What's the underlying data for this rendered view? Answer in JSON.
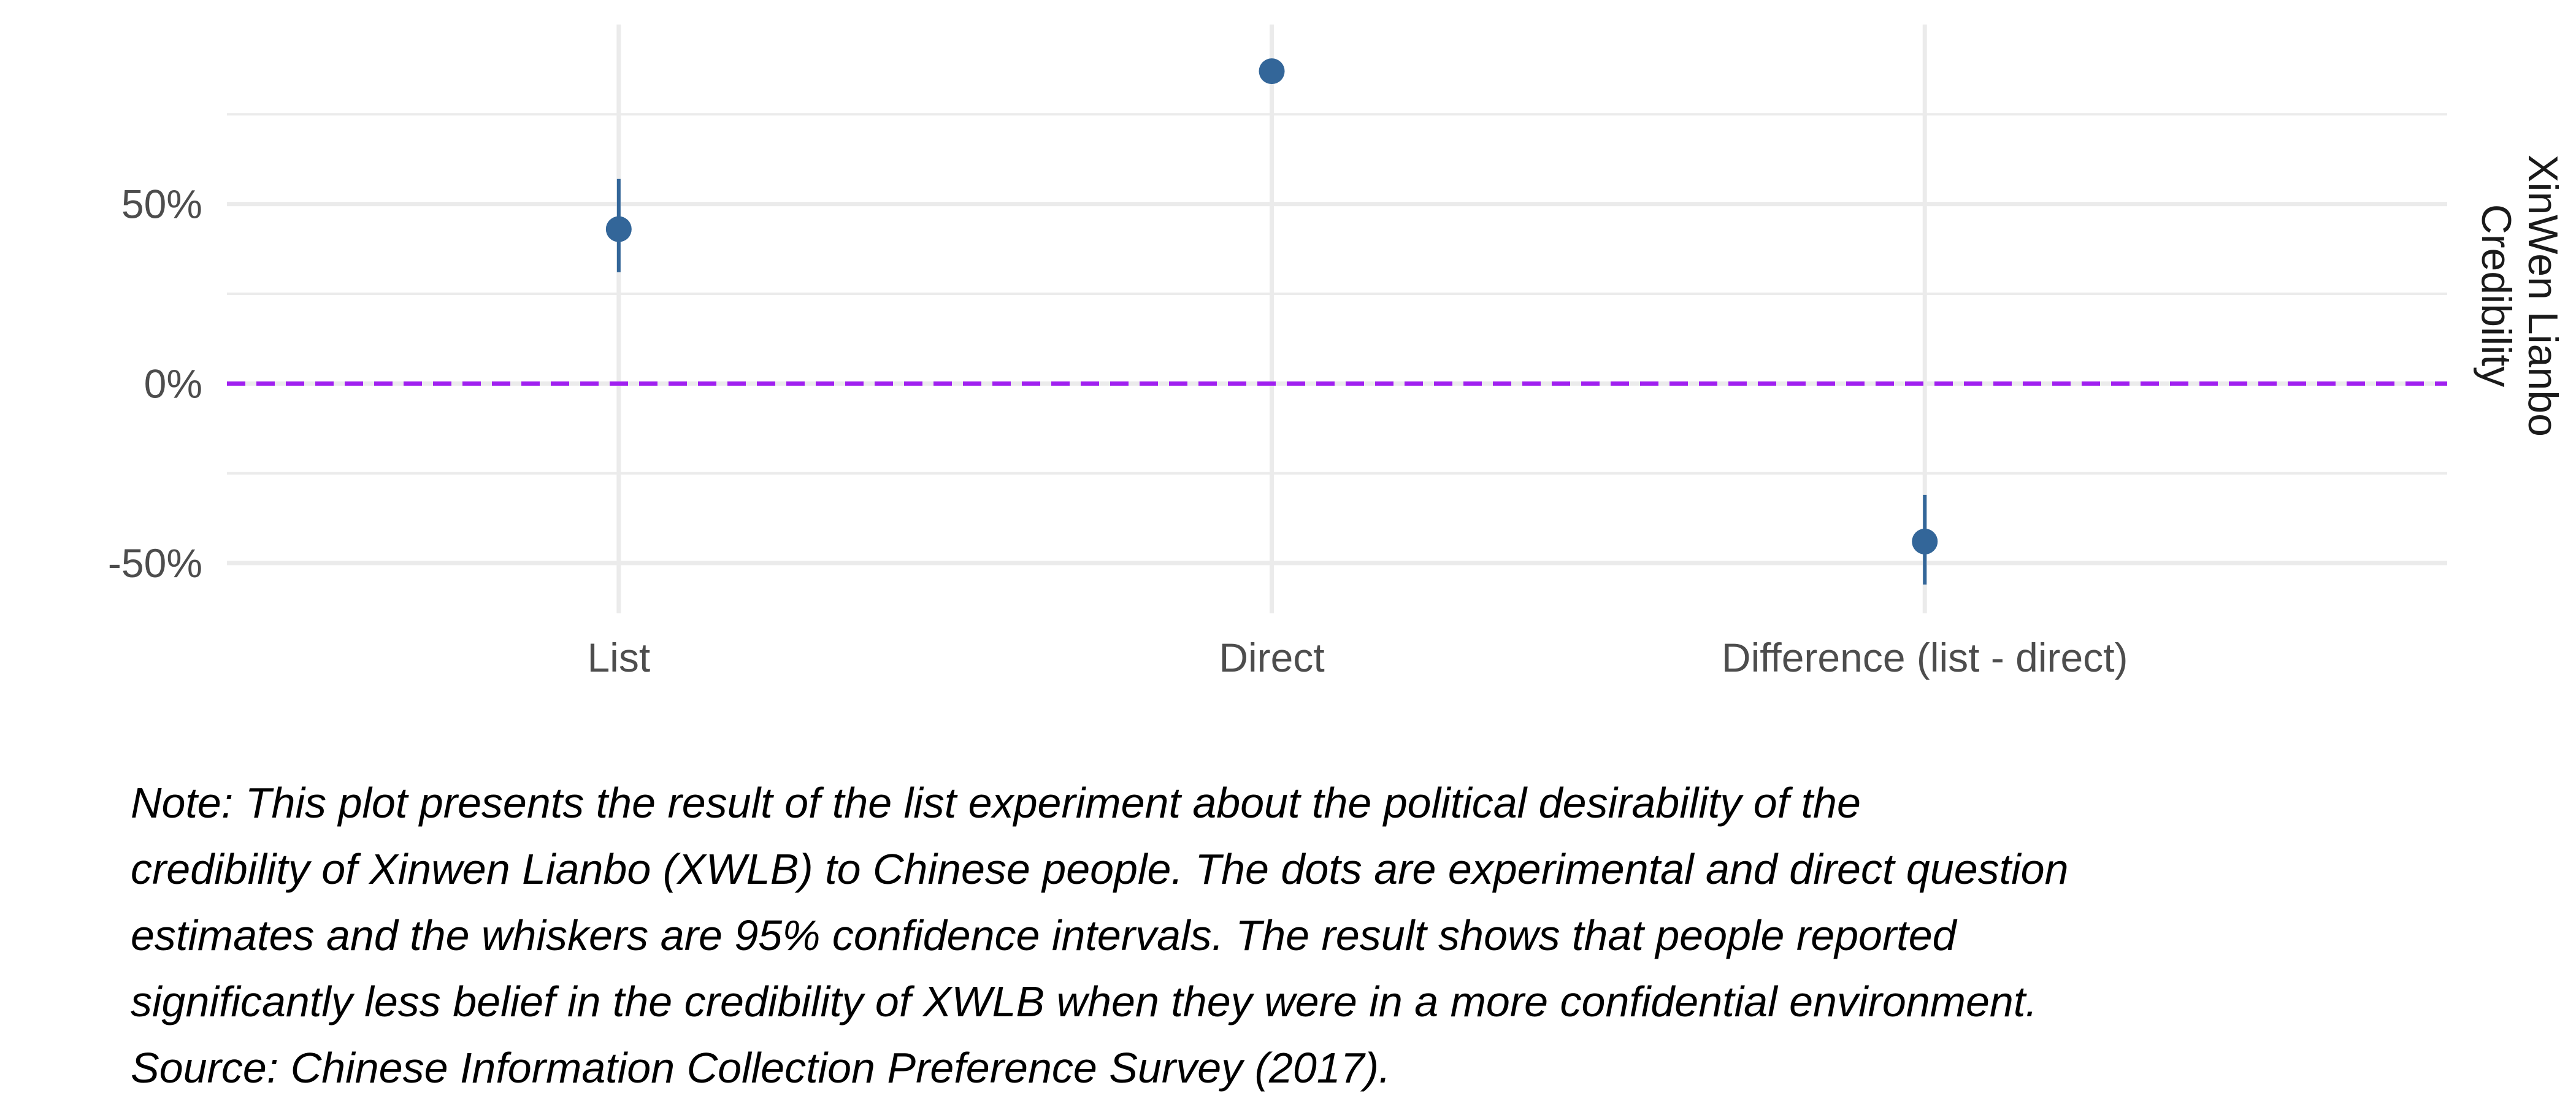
{
  "chart_data": {
    "type": "scatter",
    "categories": [
      "List",
      "Direct",
      "Difference (list - direct)"
    ],
    "points": [
      {
        "category": "List",
        "estimate": 0.43,
        "ci_low": 0.31,
        "ci_high": 0.57
      },
      {
        "category": "Direct",
        "estimate": 0.87,
        "ci_low": 0.87,
        "ci_high": 0.87
      },
      {
        "category": "Difference (list - direct)",
        "estimate": -0.44,
        "ci_low": -0.56,
        "ci_high": -0.31
      }
    ],
    "y_ticks": [
      -0.5,
      0,
      0.5
    ],
    "y_tick_labels": [
      "-50%",
      "0%",
      "50%"
    ],
    "ylim": [
      -0.64,
      1.0
    ],
    "reference_line": {
      "y": 0,
      "style": "dashed",
      "color": "#A020F0"
    },
    "facet_label": [
      "XinWen Lianbo",
      "Credibility"
    ],
    "title": "",
    "xlabel": "",
    "ylabel": "",
    "grid": true,
    "point_color": "#336699"
  },
  "note": {
    "lines": [
      "Note: This plot presents the result of the list experiment about the political desirability of the",
      "credibility of Xinwen Lianbo (XWLB) to Chinese people. The dots are experimental and direct question",
      "estimates and the whiskers are 95% confidence intervals. The result shows that people reported",
      "significantly less belief in the credibility of XWLB when they were in a more confidential environment.",
      "Source: Chinese Information Collection Preference Survey (2017)."
    ]
  }
}
